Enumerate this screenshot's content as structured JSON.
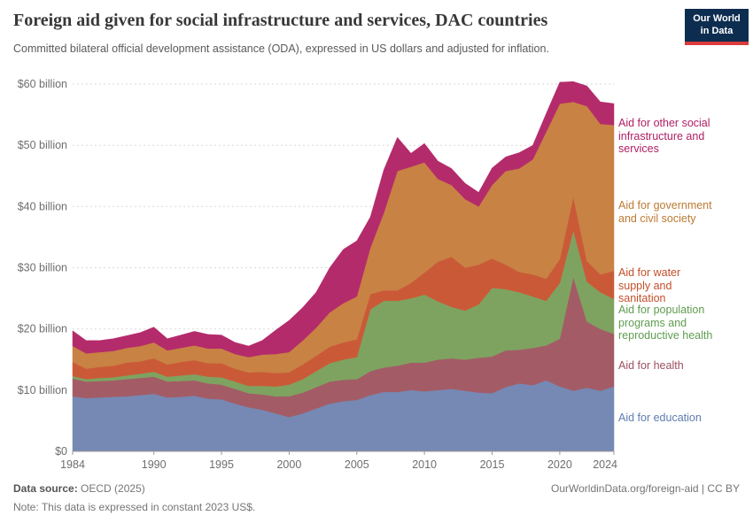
{
  "header": {
    "title": "Foreign aid given for social infrastructure and services, DAC countries",
    "subtitle": "Committed bilateral official development assistance (ODA), expressed in US dollars and adjusted for inflation.",
    "logo": {
      "line1": "Our World",
      "line2": "in Data",
      "bg_color": "#0D2D50",
      "bar_color": "#D93B3B"
    }
  },
  "chart_data": {
    "type": "area",
    "stacked": true,
    "title": "Foreign aid given for social infrastructure and services, DAC countries",
    "xlabel": "",
    "ylabel": "",
    "unit": "billion US$ (constant 2023)",
    "ylim": [
      0,
      60
    ],
    "grid": "dashed-horizontal",
    "legend_position": "right",
    "x": [
      1984,
      1985,
      1986,
      1987,
      1988,
      1989,
      1990,
      1991,
      1992,
      1993,
      1994,
      1995,
      1996,
      1997,
      1998,
      1999,
      2000,
      2001,
      2002,
      2003,
      2004,
      2005,
      2006,
      2007,
      2008,
      2009,
      2010,
      2011,
      2012,
      2013,
      2014,
      2015,
      2016,
      2017,
      2018,
      2019,
      2020,
      2021,
      2022,
      2023,
      2024
    ],
    "xticks": [
      1984,
      1990,
      1995,
      2000,
      2005,
      2010,
      2015,
      2020,
      2024
    ],
    "yticks": [
      {
        "value": 0,
        "label": "$0"
      },
      {
        "value": 10,
        "label": "$10 billion"
      },
      {
        "value": 20,
        "label": "$20 billion"
      },
      {
        "value": 30,
        "label": "$30 billion"
      },
      {
        "value": 40,
        "label": "$40 billion"
      },
      {
        "value": 50,
        "label": "$50 billion"
      },
      {
        "value": 60,
        "label": "$60 billion"
      }
    ],
    "series": [
      {
        "key": "education",
        "name": "Aid for education",
        "label": "Aid for education",
        "color": "#7589B4",
        "label_color": "#5E7CB2",
        "values": [
          9.0,
          8.7,
          8.8,
          8.9,
          9.0,
          9.2,
          9.4,
          8.8,
          8.9,
          9.1,
          8.6,
          8.5,
          7.8,
          7.2,
          6.8,
          6.2,
          5.6,
          6.2,
          7.0,
          7.8,
          8.2,
          8.4,
          9.2,
          9.7,
          9.7,
          10.0,
          9.8,
          10.0,
          10.2,
          9.9,
          9.6,
          9.5,
          10.5,
          11.1,
          10.8,
          11.6,
          10.6,
          9.9,
          10.4,
          9.9,
          10.6
        ]
      },
      {
        "key": "health",
        "name": "Aid for health",
        "label": "Aid for health",
        "color": "#A35C66",
        "label_color": "#9D4F5F",
        "values": [
          2.9,
          2.7,
          2.7,
          2.7,
          2.8,
          2.8,
          2.8,
          2.6,
          2.6,
          2.5,
          2.5,
          2.4,
          2.4,
          2.3,
          2.5,
          2.8,
          3.4,
          3.4,
          3.5,
          3.6,
          3.5,
          3.4,
          3.9,
          4.0,
          4.3,
          4.5,
          4.7,
          5.0,
          5.0,
          5.1,
          5.7,
          6.0,
          6.0,
          5.5,
          6.1,
          5.7,
          7.8,
          18.6,
          10.8,
          10.1,
          8.6
        ]
      },
      {
        "key": "population",
        "name": "Aid for population programs and reproductive health",
        "label": "Aid for population\nprograms and\nreproductive health",
        "color": "#7EA360",
        "label_color": "#5F9C50",
        "values": [
          0.4,
          0.4,
          0.5,
          0.5,
          0.6,
          0.7,
          0.8,
          0.8,
          0.9,
          1.0,
          1.1,
          1.2,
          1.2,
          1.2,
          1.4,
          1.6,
          1.9,
          2.2,
          2.6,
          3.0,
          3.3,
          3.6,
          10.1,
          10.9,
          10.6,
          10.5,
          11.1,
          9.5,
          8.4,
          8.0,
          8.7,
          11.2,
          10.0,
          9.4,
          8.4,
          7.3,
          9.1,
          7.6,
          6.5,
          6.0,
          5.7
        ]
      },
      {
        "key": "water",
        "name": "Aid for water supply and sanitation",
        "label": "Aid for water\nsupply and\nsanitation",
        "color": "#CA5A37",
        "label_color": "#C2502A",
        "values": [
          2.3,
          1.7,
          1.8,
          1.9,
          2.1,
          2.0,
          2.2,
          2.0,
          2.2,
          2.3,
          2.2,
          2.3,
          2.1,
          2.2,
          2.3,
          2.2,
          2.0,
          2.4,
          2.5,
          2.7,
          2.8,
          2.9,
          2.5,
          1.7,
          1.7,
          2.5,
          3.6,
          6.5,
          8.2,
          7.0,
          6.5,
          4.8,
          4.0,
          3.3,
          3.6,
          3.6,
          3.9,
          5.5,
          3.4,
          2.9,
          4.6
        ]
      },
      {
        "key": "government",
        "name": "Aid for government and civil society",
        "label": "Aid for government\nand civil society",
        "color": "#C88244",
        "label_color": "#BD7A32",
        "values": [
          2.6,
          2.5,
          2.4,
          2.4,
          2.4,
          2.5,
          2.6,
          2.3,
          2.3,
          2.4,
          2.4,
          2.4,
          2.4,
          2.5,
          2.8,
          3.1,
          3.3,
          3.9,
          4.6,
          5.6,
          6.4,
          7.0,
          7.6,
          12.7,
          19.5,
          19.0,
          18.0,
          13.5,
          11.7,
          11.2,
          9.5,
          12.0,
          15.3,
          16.9,
          18.8,
          24.0,
          25.4,
          15.5,
          25.3,
          24.6,
          23.8
        ]
      },
      {
        "key": "other",
        "name": "Aid for other social infrastructure and services",
        "label": "Aid for other social\ninfrastructure and\nservices",
        "color": "#B42B6B",
        "label_color": "#B01E64",
        "values": [
          2.5,
          2.1,
          1.9,
          2.0,
          2.0,
          2.2,
          2.5,
          1.9,
          2.1,
          2.3,
          2.3,
          2.2,
          1.9,
          1.8,
          2.3,
          3.9,
          5.2,
          5.4,
          5.8,
          7.3,
          8.8,
          9.1,
          5.0,
          7.0,
          5.5,
          2.2,
          3.1,
          2.9,
          2.7,
          2.6,
          2.3,
          2.8,
          2.3,
          2.6,
          2.3,
          3.0,
          3.5,
          3.3,
          3.3,
          3.6,
          3.5
        ]
      }
    ]
  },
  "footer": {
    "source_label": "Data source:",
    "source_value": "OECD (2025)",
    "right_text": "OurWorldinData.org/foreign-aid | CC BY",
    "note_label": "Note:",
    "note_value": "This data is expressed in constant 2023 US$."
  }
}
